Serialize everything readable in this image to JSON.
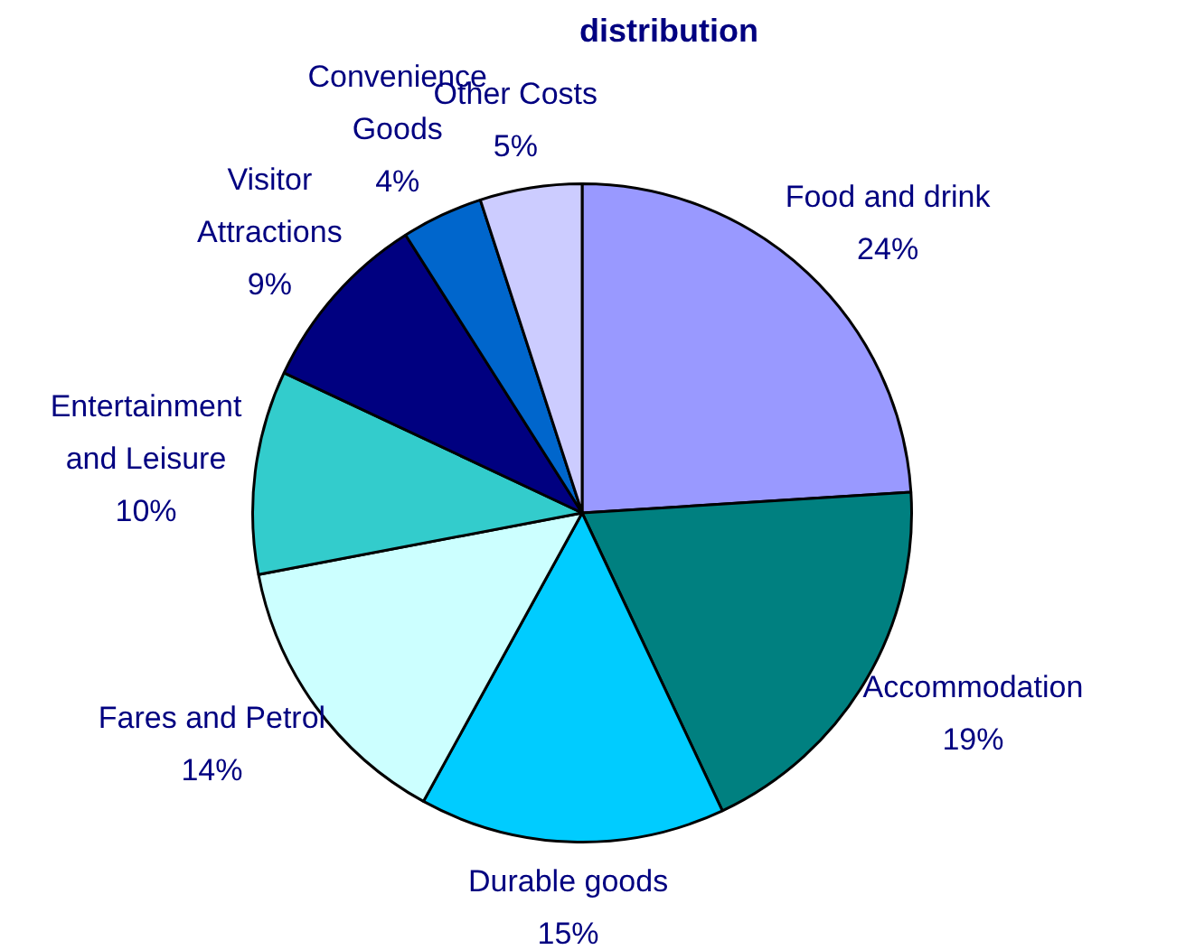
{
  "chart_data": {
    "type": "pie",
    "title": "distribution",
    "categories": [
      "Food and drink",
      "Accommodation",
      "Durable goods",
      "Fares and Petrol",
      "Entertainment and Leisure",
      "Visitor Attractions",
      "Convenience Goods",
      "Other Costs"
    ],
    "values": [
      24,
      19,
      15,
      14,
      10,
      9,
      4,
      5
    ],
    "colors": [
      "#9999ff",
      "#008080",
      "#00ccff",
      "#ccffff",
      "#33cccc",
      "#000080",
      "#0066cc",
      "#ccccff"
    ],
    "value_labels": [
      "24%",
      "19%",
      "15%",
      "14%",
      "10%",
      "9%",
      "4%",
      "5%"
    ],
    "legend": false
  }
}
